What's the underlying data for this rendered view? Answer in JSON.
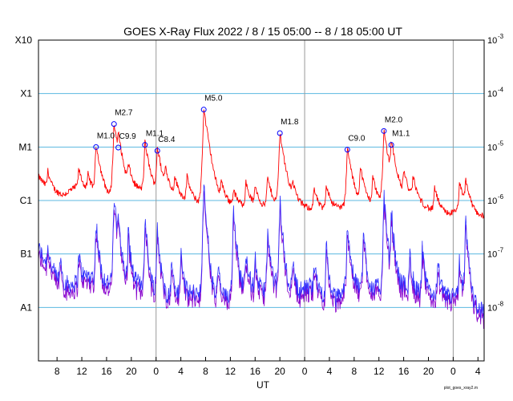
{
  "chart_data": {
    "type": "line",
    "title": "GOES X-Ray Flux   2022 /  8 / 15   05:00 --  8 / 18   05:00   UT",
    "xlabel": "UT",
    "credit": "plot_goes_xray2.m",
    "x_range_hours": [
      0,
      72
    ],
    "x_tick_labels": [
      "8",
      "12",
      "16",
      "20",
      "0",
      "4",
      "8",
      "12",
      "16",
      "20",
      "0",
      "4",
      "8",
      "12",
      "16",
      "20",
      "0",
      "4"
    ],
    "x_tick_hours": [
      3,
      7,
      11,
      15,
      19,
      23,
      27,
      31,
      35,
      39,
      43,
      47,
      51,
      55,
      59,
      63,
      67,
      71
    ],
    "day_boundaries_hours": [
      19,
      43,
      67
    ],
    "y_scale": "log",
    "y_range_exponent": [
      -9,
      -3
    ],
    "left_labels": [
      {
        "label": "X10",
        "exp": -3
      },
      {
        "label": "X1",
        "exp": -4
      },
      {
        "label": "M1",
        "exp": -5
      },
      {
        "label": "C1",
        "exp": -6
      },
      {
        "label": "B1",
        "exp": -7
      },
      {
        "label": "A1",
        "exp": -8
      }
    ],
    "right_labels": [
      {
        "base": "10",
        "sup": "-3",
        "exp": -3
      },
      {
        "base": "10",
        "sup": "-4",
        "exp": -4
      },
      {
        "base": "10",
        "sup": "-5",
        "exp": -5
      },
      {
        "base": "10",
        "sup": "-6",
        "exp": -6
      },
      {
        "base": "10",
        "sup": "-7",
        "exp": -7
      },
      {
        "base": "10",
        "sup": "-8",
        "exp": -8
      }
    ],
    "grid_exponents": [
      -4,
      -5,
      -6,
      -7,
      -8
    ],
    "colors": {
      "long": "#ff0000",
      "short": "#3333ff",
      "short_low": "#8800cc",
      "grid": "#5cb8e0",
      "day_line": "#999999",
      "marker": "#0000ff"
    },
    "series": [
      {
        "key": "long",
        "baseline_log": [
          [
            0,
            -5.55
          ],
          [
            2,
            -5.85
          ],
          [
            4,
            -5.9
          ],
          [
            6,
            -5.75
          ],
          [
            8,
            -5.85
          ],
          [
            10,
            -5.9
          ],
          [
            12,
            -5.95
          ],
          [
            14,
            -5.9
          ],
          [
            16,
            -5.8
          ],
          [
            18,
            -5.85
          ],
          [
            20,
            -5.9
          ],
          [
            22,
            -5.95
          ],
          [
            24,
            -6.0
          ],
          [
            26,
            -6.05
          ],
          [
            28,
            -6.0
          ],
          [
            30,
            -6.05
          ],
          [
            32,
            -6.1
          ],
          [
            34,
            -6.1
          ],
          [
            36,
            -6.15
          ],
          [
            38,
            -6.1
          ],
          [
            40,
            -6.05
          ],
          [
            42,
            -6.1
          ],
          [
            44,
            -6.15
          ],
          [
            46,
            -6.2
          ],
          [
            48,
            -6.15
          ],
          [
            50,
            -6.1
          ],
          [
            52,
            -6.05
          ],
          [
            54,
            -6.1
          ],
          [
            56,
            -6.05
          ],
          [
            58,
            -5.95
          ],
          [
            60,
            -6.0
          ],
          [
            62,
            -6.1
          ],
          [
            64,
            -6.2
          ],
          [
            66,
            -6.25
          ],
          [
            68,
            -6.2
          ],
          [
            70,
            -6.25
          ],
          [
            72,
            -6.3
          ]
        ]
      },
      {
        "key": "short",
        "baseline_log": [
          [
            0,
            -6.9
          ],
          [
            2,
            -7.3
          ],
          [
            4,
            -7.6
          ],
          [
            6,
            -7.55
          ],
          [
            8,
            -7.4
          ],
          [
            10,
            -7.5
          ],
          [
            12,
            -7.55
          ],
          [
            14,
            -7.5
          ],
          [
            16,
            -7.55
          ],
          [
            18,
            -7.6
          ],
          [
            20,
            -7.75
          ],
          [
            22,
            -7.8
          ],
          [
            24,
            -7.75
          ],
          [
            26,
            -7.7
          ],
          [
            28,
            -7.8
          ],
          [
            30,
            -7.85
          ],
          [
            32,
            -7.6
          ],
          [
            34,
            -7.6
          ],
          [
            36,
            -7.7
          ],
          [
            38,
            -7.55
          ],
          [
            40,
            -7.6
          ],
          [
            42,
            -7.7
          ],
          [
            44,
            -7.6
          ],
          [
            46,
            -7.75
          ],
          [
            48,
            -7.85
          ],
          [
            50,
            -7.55
          ],
          [
            52,
            -7.6
          ],
          [
            54,
            -7.65
          ],
          [
            56,
            -7.6
          ],
          [
            58,
            -7.5
          ],
          [
            60,
            -7.65
          ],
          [
            62,
            -7.7
          ],
          [
            64,
            -7.75
          ],
          [
            66,
            -7.8
          ],
          [
            68,
            -7.75
          ],
          [
            70,
            -7.9
          ],
          [
            72,
            -8.1
          ]
        ]
      }
    ],
    "flares": [
      {
        "t": 9.3,
        "long_log": -5.0,
        "short_log": -6.4,
        "label": "M1.0"
      },
      {
        "t": 12.2,
        "long_log": -4.57,
        "short_log": -5.9,
        "label": "M2.7"
      },
      {
        "t": 12.9,
        "long_log": -5.01,
        "short_log": -6.3,
        "label": "C9.9"
      },
      {
        "t": 17.2,
        "long_log": -4.96,
        "short_log": -6.35,
        "label": "M1.1"
      },
      {
        "t": 19.2,
        "long_log": -5.07,
        "short_log": -6.5,
        "label": "C8.4"
      },
      {
        "t": 26.7,
        "long_log": -4.3,
        "short_log": -5.7,
        "label": "M5.0"
      },
      {
        "t": 31.5,
        "long_log": -6.1,
        "short_log": -6.1,
        "label": ""
      },
      {
        "t": 39.0,
        "long_log": -4.74,
        "short_log": -6.0,
        "label": "M1.8"
      },
      {
        "t": 49.9,
        "long_log": -5.05,
        "short_log": -6.4,
        "label": "C9.0"
      },
      {
        "t": 55.8,
        "long_log": -4.7,
        "short_log": -5.9,
        "label": "M2.0"
      },
      {
        "t": 57.0,
        "long_log": -4.96,
        "short_log": -6.2,
        "label": "M1.1"
      }
    ],
    "minor_bumps_short": [
      [
        1.5,
        -7.0
      ],
      [
        3.5,
        -7.2
      ],
      [
        6.5,
        -7.1
      ],
      [
        14.5,
        -6.6
      ],
      [
        21.5,
        -7.2
      ],
      [
        23.0,
        -7.0
      ],
      [
        29.0,
        -7.3
      ],
      [
        33.5,
        -7.0
      ],
      [
        35.0,
        -7.2
      ],
      [
        37.0,
        -6.6
      ],
      [
        41.0,
        -7.2
      ],
      [
        44.5,
        -7.3
      ],
      [
        46.5,
        -6.9
      ],
      [
        52.5,
        -6.6
      ],
      [
        60.0,
        -7.1
      ],
      [
        62.0,
        -7.0
      ],
      [
        64.5,
        -7.2
      ],
      [
        68.0,
        -7.3
      ],
      [
        69.0,
        -6.4
      ]
    ],
    "minor_bumps_long": [
      [
        1.5,
        -5.7
      ],
      [
        6.5,
        -5.65
      ],
      [
        8.0,
        -5.8
      ],
      [
        14.5,
        -5.55
      ],
      [
        20.5,
        -5.6
      ],
      [
        22.0,
        -5.8
      ],
      [
        24.0,
        -5.75
      ],
      [
        29.5,
        -5.9
      ],
      [
        33.5,
        -5.85
      ],
      [
        35.0,
        -5.95
      ],
      [
        37.0,
        -5.7
      ],
      [
        41.0,
        -5.9
      ],
      [
        44.5,
        -6.0
      ],
      [
        46.5,
        -5.85
      ],
      [
        52.0,
        -5.5
      ],
      [
        54.0,
        -5.7
      ],
      [
        59.0,
        -5.6
      ],
      [
        60.5,
        -5.75
      ],
      [
        64.0,
        -5.95
      ],
      [
        68.0,
        -5.8
      ],
      [
        69.0,
        -5.75
      ]
    ]
  }
}
